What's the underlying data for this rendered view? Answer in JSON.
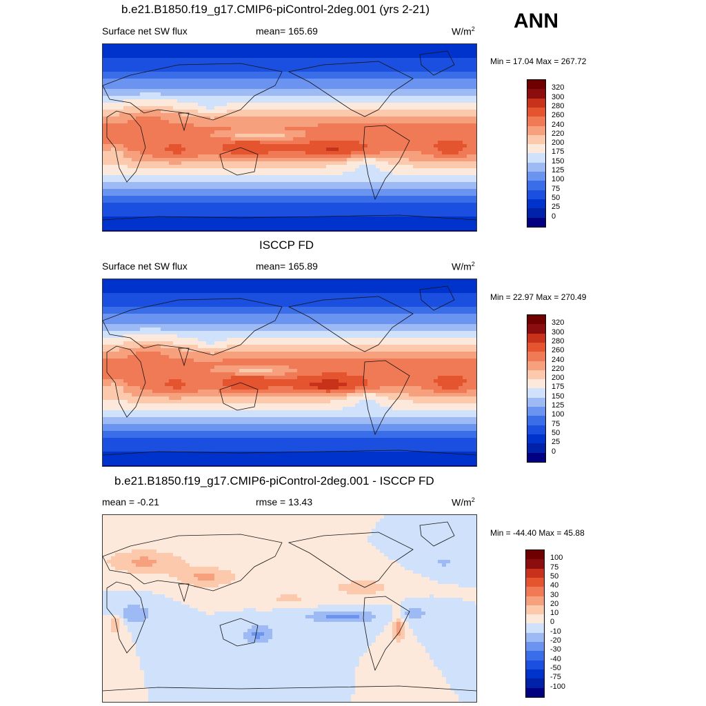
{
  "header": {
    "season": "ANN"
  },
  "panels": [
    {
      "title": "b.e21.B1850.f19_g17.CMIP6-piControl-2deg.001 (yrs 2-21)",
      "left_label": "Surface net SW flux",
      "center_label": "mean= 165.69",
      "unit": "W/m",
      "unit_sup": "2",
      "minmax": "Min =  17.04 Max = 267.72",
      "colorbar_labels": [
        "320",
        "300",
        "280",
        "260",
        "240",
        "220",
        "200",
        "175",
        "150",
        "125",
        "100",
        "75",
        "50",
        "25",
        "0"
      ]
    },
    {
      "title": "ISCCP FD",
      "left_label": "Surface net SW flux",
      "center_label": "mean= 165.89",
      "unit": "W/m",
      "unit_sup": "2",
      "minmax": "Min =  22.97 Max = 270.49",
      "colorbar_labels": [
        "320",
        "300",
        "280",
        "260",
        "240",
        "220",
        "200",
        "175",
        "150",
        "125",
        "100",
        "75",
        "50",
        "25",
        "0"
      ]
    },
    {
      "title": "b.e21.B1850.f19_g17.CMIP6-piControl-2deg.001 - ISCCP FD",
      "left_label": "mean =  -0.21",
      "center_label": "rmse =  13.43",
      "unit": "W/m",
      "unit_sup": "2",
      "minmax": "Min = -44.40 Max =  45.88",
      "colorbar_labels": [
        "100",
        "75",
        "50",
        "40",
        "30",
        "20",
        "10",
        "0",
        "-10",
        "-20",
        "-30",
        "-40",
        "-50",
        "-75",
        "-100"
      ]
    }
  ],
  "chart_data": [
    {
      "type": "heatmap",
      "title": "b.e21.B1850.f19_g17.CMIP6-piControl-2deg.001 (yrs 2-21)",
      "variable": "Surface net SW flux",
      "units": "W/m2",
      "mean": 165.69,
      "min": 17.04,
      "max": 267.72,
      "contour_levels": [
        0,
        25,
        50,
        75,
        100,
        125,
        150,
        175,
        200,
        220,
        240,
        260,
        280,
        300,
        320
      ],
      "colormap": [
        "#000080",
        "#0022a8",
        "#0033cc",
        "#1a4fe0",
        "#3a6ee8",
        "#6b93f0",
        "#9ebaf5",
        "#cfe1fb",
        "#fde9dc",
        "#fcc9ad",
        "#f7a07d",
        "#f07a55",
        "#e3542f",
        "#c8321b",
        "#8b0d0d",
        "#6e0000"
      ]
    },
    {
      "type": "heatmap",
      "title": "ISCCP FD",
      "variable": "Surface net SW flux",
      "units": "W/m2",
      "mean": 165.89,
      "min": 22.97,
      "max": 270.49,
      "contour_levels": [
        0,
        25,
        50,
        75,
        100,
        125,
        150,
        175,
        200,
        220,
        240,
        260,
        280,
        300,
        320
      ],
      "colormap": [
        "#000080",
        "#0022a8",
        "#0033cc",
        "#1a4fe0",
        "#3a6ee8",
        "#6b93f0",
        "#9ebaf5",
        "#cfe1fb",
        "#fde9dc",
        "#fcc9ad",
        "#f7a07d",
        "#f07a55",
        "#e3542f",
        "#c8321b",
        "#8b0d0d",
        "#6e0000"
      ]
    },
    {
      "type": "heatmap",
      "title": "b.e21.B1850.f19_g17.CMIP6-piControl-2deg.001 - ISCCP FD",
      "units": "W/m2",
      "mean": -0.21,
      "rmse": 13.43,
      "min": -44.4,
      "max": 45.88,
      "contour_levels": [
        -100,
        -75,
        -50,
        -40,
        -30,
        -20,
        -10,
        0,
        10,
        20,
        30,
        40,
        50,
        75,
        100
      ],
      "colormap": [
        "#000080",
        "#0022a8",
        "#0033cc",
        "#1a4fe0",
        "#3a6ee8",
        "#6b93f0",
        "#9ebaf5",
        "#cfe1fb",
        "#fde9dc",
        "#fcc9ad",
        "#f7a07d",
        "#f07a55",
        "#e3542f",
        "#c8321b",
        "#8b0d0d",
        "#6e0000"
      ]
    }
  ]
}
